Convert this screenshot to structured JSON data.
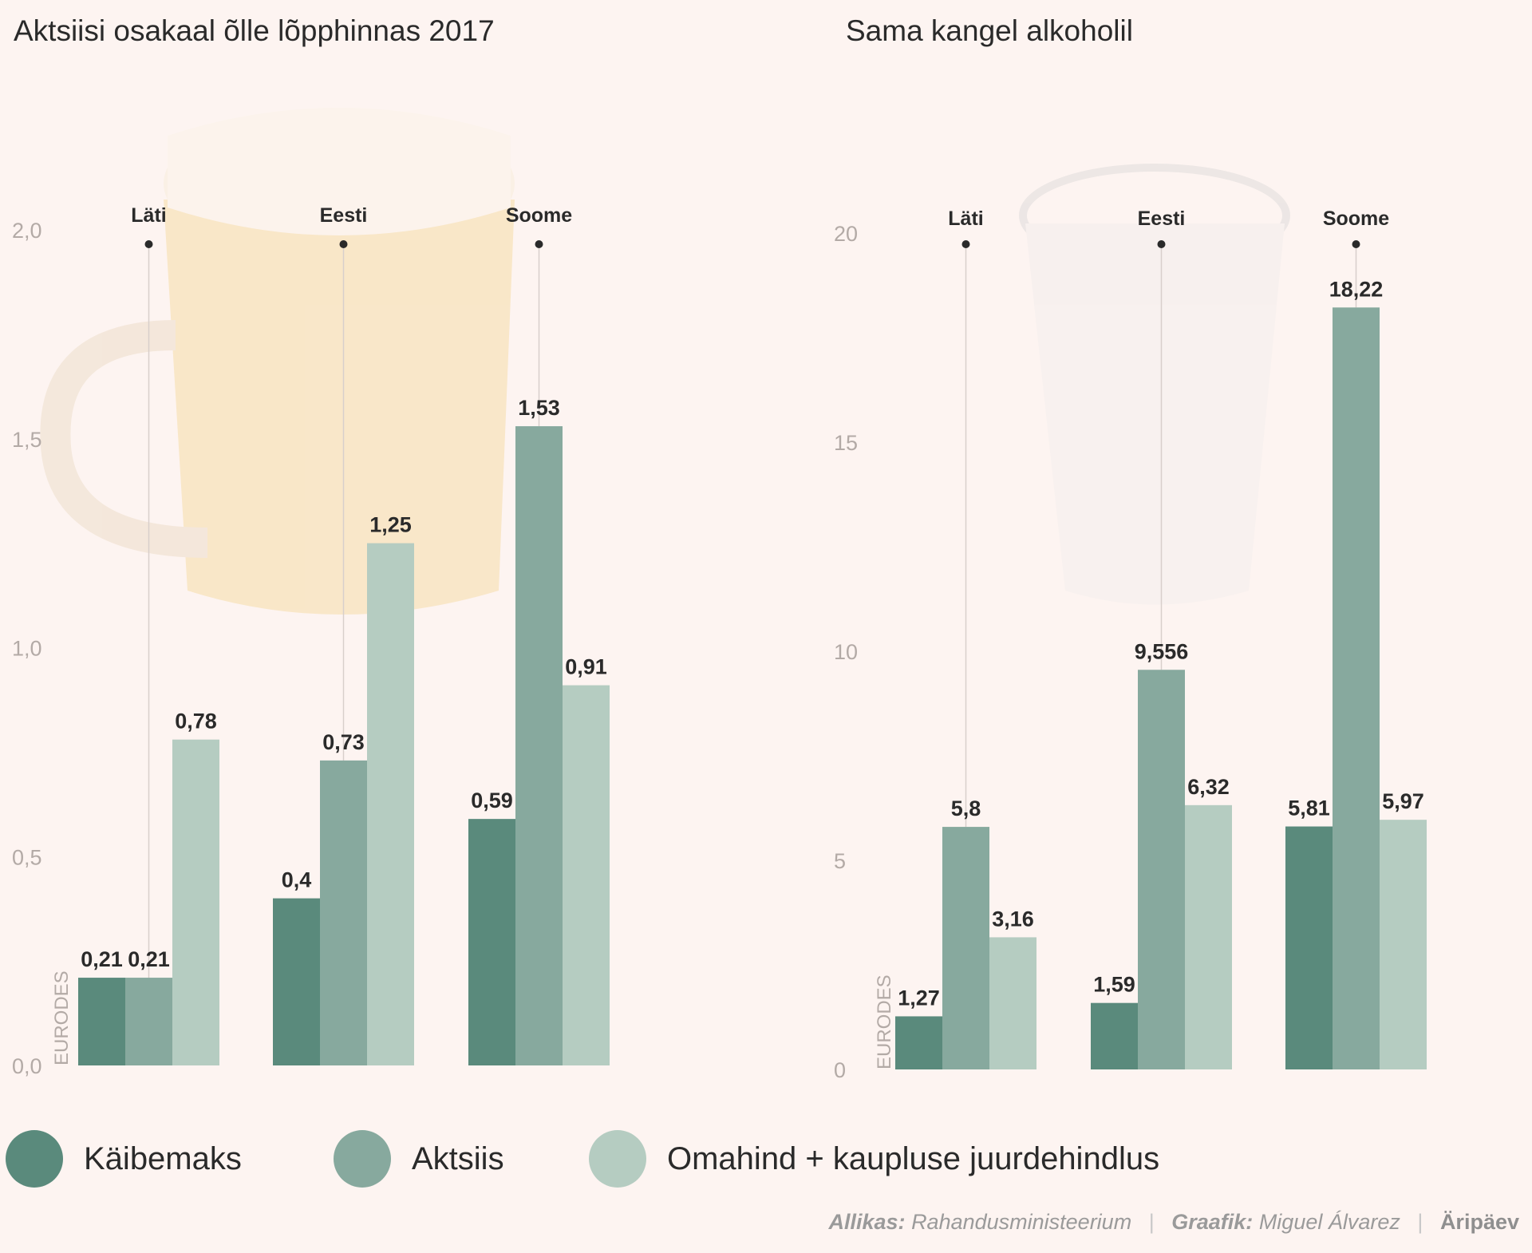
{
  "colors": {
    "background": "#fdf4f1",
    "kaibemaks": "#5a8a7c",
    "aktsiis": "#87a99e",
    "omahind": "#b5ccc1"
  },
  "legend": [
    {
      "label": "Käibemaks",
      "color": "#5a8a7c"
    },
    {
      "label": "Aktsiis",
      "color": "#87a99e"
    },
    {
      "label": "Omahind + kaupluse juurdehindlus",
      "color": "#b5ccc1"
    }
  ],
  "footer": {
    "source_label": "Allikas:",
    "source": "Rahandusministeerium",
    "graphic_label": "Graafik:",
    "graphic": "Miguel Álvarez",
    "brand": "Äripäev"
  },
  "chart_data": [
    {
      "type": "bar",
      "title": "Aktsiisi osakaal õlle lõpphinnas 2017",
      "ylabel": "EURODES",
      "ylim": [
        0,
        2.0
      ],
      "yticks": [
        "0,0",
        "0,5",
        "1,0",
        "1,5",
        "2,0"
      ],
      "categories": [
        "Läti",
        "Eesti",
        "Soome"
      ],
      "series": [
        {
          "name": "Käibemaks",
          "values": [
            0.21,
            0.4,
            0.59
          ],
          "labels": [
            "0,21",
            "0,4",
            "0,59"
          ]
        },
        {
          "name": "Aktsiis",
          "values": [
            0.21,
            0.73,
            1.53
          ],
          "labels": [
            "0,21",
            "0,73",
            "1,53"
          ]
        },
        {
          "name": "Omahind + kaupluse juurdehindlus",
          "values": [
            0.78,
            1.25,
            0.91
          ],
          "labels": [
            "0,78",
            "1,25",
            "0,91"
          ]
        }
      ],
      "grid": false,
      "background_image": "beer-mug"
    },
    {
      "type": "bar",
      "title": "Sama kangel alkoholil",
      "ylabel": "EURODES",
      "ylim": [
        0,
        20
      ],
      "yticks": [
        "0",
        "5",
        "10",
        "15",
        "20"
      ],
      "categories": [
        "Läti",
        "Eesti",
        "Soome"
      ],
      "series": [
        {
          "name": "Käibemaks",
          "values": [
            1.27,
            1.59,
            5.81
          ],
          "labels": [
            "1,27",
            "1,59",
            "5,81"
          ]
        },
        {
          "name": "Aktsiis",
          "values": [
            5.8,
            9.556,
            18.22
          ],
          "labels": [
            "5,8",
            "9,556",
            "18,22"
          ]
        },
        {
          "name": "Omahind + kaupluse juurdehindlus",
          "values": [
            3.16,
            6.32,
            5.97
          ],
          "labels": [
            "3,16",
            "6,32",
            "5,97"
          ]
        }
      ],
      "grid": false,
      "background_image": "shot-glass"
    }
  ]
}
